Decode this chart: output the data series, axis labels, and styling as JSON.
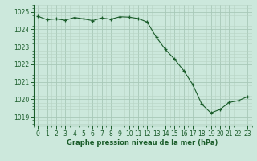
{
  "title": "Graphe pression niveau de la mer (hPa)",
  "background_color": "#cce8dc",
  "grid_color_major": "#a8c8b8",
  "grid_color_minor": "#b8d4c4",
  "line_color": "#1a5c2a",
  "marker_color": "#1a5c2a",
  "ylim": [
    1018.5,
    1025.4
  ],
  "xlim": [
    -0.5,
    23.5
  ],
  "yticks": [
    1019,
    1020,
    1021,
    1022,
    1023,
    1024,
    1025
  ],
  "xticks": [
    0,
    1,
    2,
    3,
    4,
    5,
    6,
    7,
    8,
    9,
    10,
    11,
    12,
    13,
    14,
    15,
    16,
    17,
    18,
    19,
    20,
    21,
    22,
    23
  ],
  "pressure_data": [
    1024.75,
    1024.55,
    1024.6,
    1024.52,
    1024.68,
    1024.6,
    1024.5,
    1024.65,
    1024.58,
    1024.72,
    1024.7,
    1024.62,
    1024.42,
    1023.55,
    1022.85,
    1022.3,
    1021.65,
    1020.85,
    1019.72,
    1019.22,
    1019.42,
    1019.82,
    1019.92,
    1020.15
  ],
  "title_fontsize": 6.0,
  "tick_labelsize": 5.5,
  "ylabel_fontsize": 6.0
}
